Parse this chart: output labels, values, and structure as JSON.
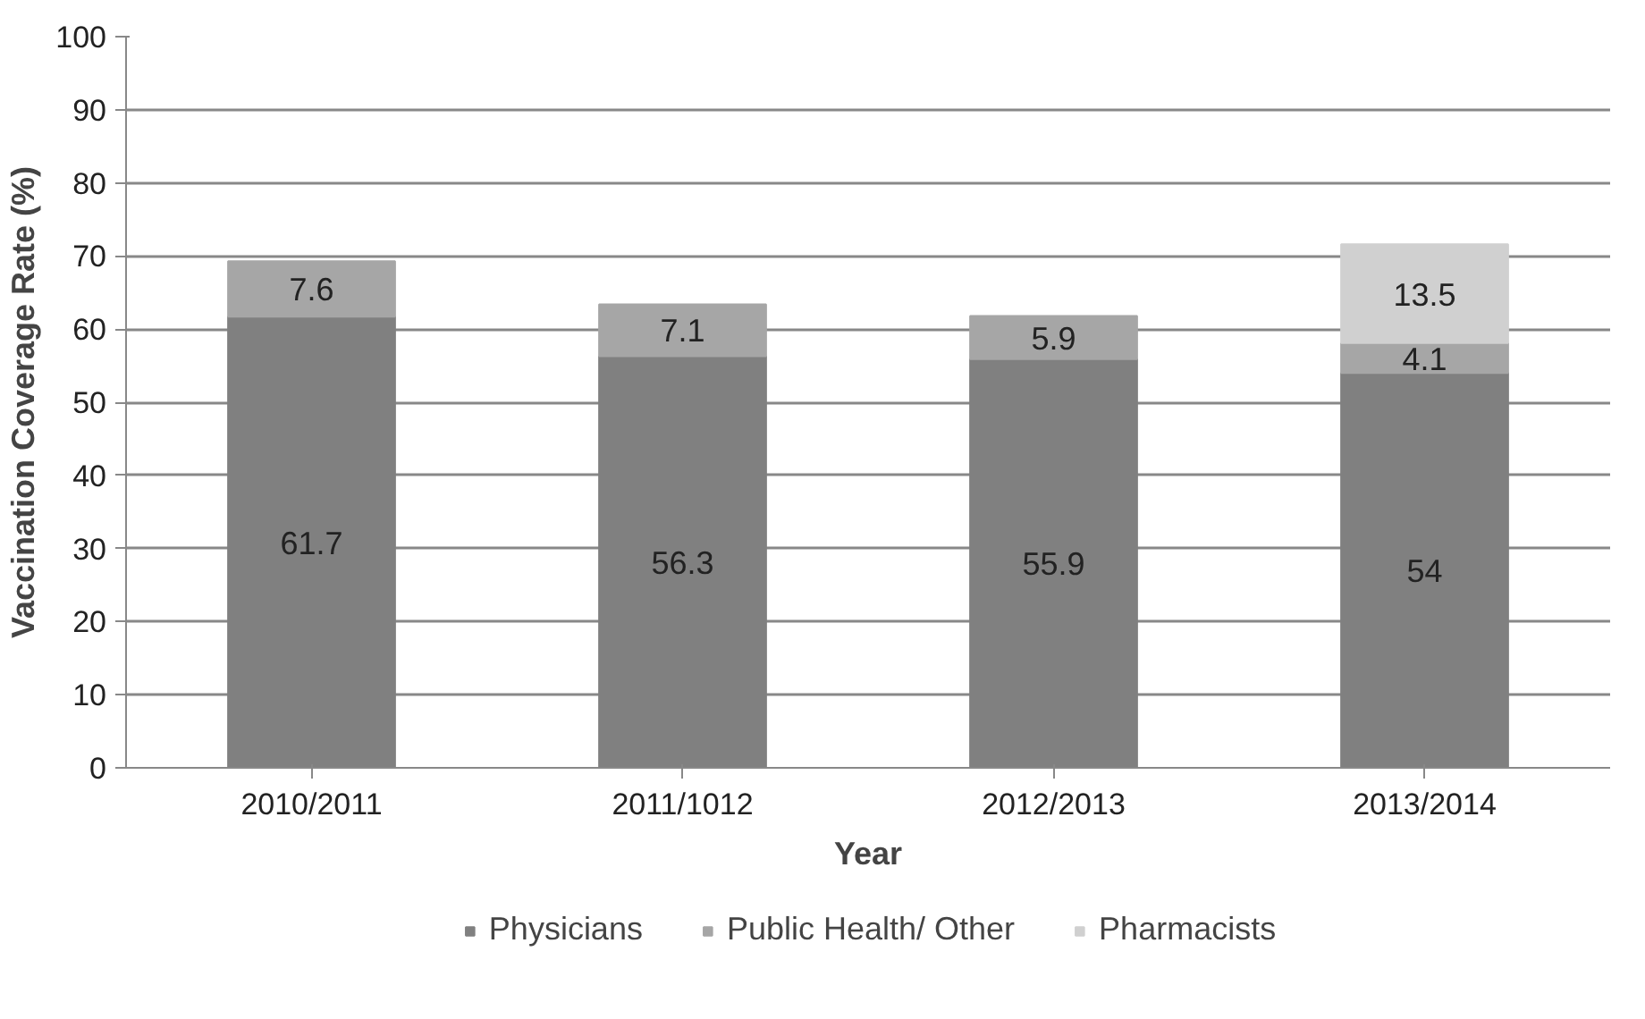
{
  "chart_data": {
    "type": "bar",
    "stacked": true,
    "xlabel": "Year",
    "ylabel": "Vaccination Coverage Rate (%)",
    "categories": [
      "2010/2011",
      "2011/1012",
      "2012/2013",
      "2013/2014"
    ],
    "series": [
      {
        "name": "Physicians",
        "color": "#808080",
        "values": [
          61.7,
          56.3,
          55.9,
          54
        ]
      },
      {
        "name": "Public Health/ Other",
        "color": "#a6a6a6",
        "values": [
          7.6,
          7.1,
          5.9,
          4.1
        ]
      },
      {
        "name": "Pharmacists",
        "color": "#d0d0d0",
        "values": [
          null,
          null,
          null,
          13.5
        ]
      }
    ],
    "ylim": [
      0,
      100
    ],
    "yticks": [
      0,
      10,
      20,
      30,
      40,
      50,
      60,
      70,
      80,
      90,
      100
    ],
    "grid": "y",
    "legend": "bottom",
    "data_labels": true
  }
}
